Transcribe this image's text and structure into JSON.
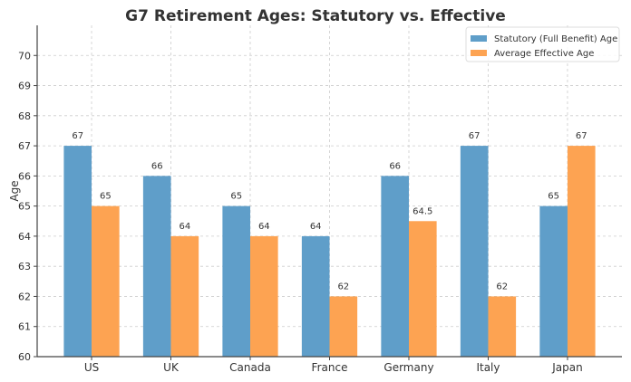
{
  "chart_data": {
    "type": "bar",
    "title": "G7 Retirement Ages: Statutory vs. Effective",
    "xlabel": "",
    "ylabel": "Age",
    "ylim": [
      60,
      71
    ],
    "yticks": [
      60,
      61,
      62,
      63,
      64,
      65,
      66,
      67,
      68,
      69,
      70
    ],
    "grid": true,
    "legend_position": "top-right",
    "categories": [
      "US",
      "UK",
      "Canada",
      "France",
      "Germany",
      "Italy",
      "Japan"
    ],
    "series": [
      {
        "name": "Statutory (Full Benefit) Age",
        "color": "#5f9ec9",
        "values": [
          67,
          66,
          65,
          64,
          66,
          67,
          65
        ],
        "labels": [
          "67",
          "66",
          "65",
          "64",
          "66",
          "67",
          "65"
        ]
      },
      {
        "name": "Average Effective Age",
        "color": "#fda352",
        "values": [
          65,
          64,
          64,
          62,
          64.5,
          62,
          67
        ],
        "labels": [
          "65",
          "64",
          "64",
          "62",
          "64.5",
          "62",
          "67"
        ]
      }
    ]
  }
}
